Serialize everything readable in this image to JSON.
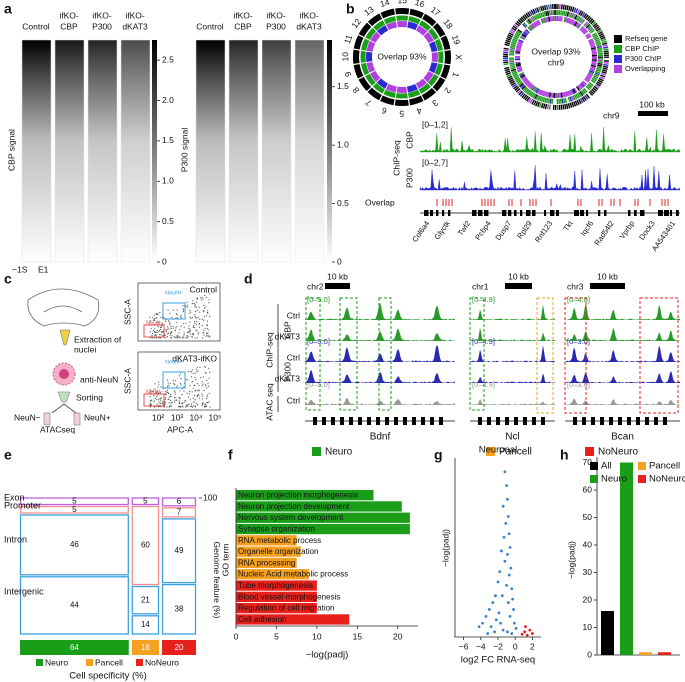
{
  "panels": {
    "a": {
      "label": "a",
      "groups": [
        {
          "ylabel": "CBP signal",
          "columns": [
            [
              "Control"
            ],
            [
              "ifKO-",
              "CBP"
            ],
            [
              "ifKO-",
              "P300"
            ],
            [
              "ifKO-",
              "dKAT3"
            ]
          ],
          "colorbar": {
            "lim": [
              0,
              2.75
            ],
            "ticks": [
              0,
              0.5,
              {
                "value": 1,
                "label": "1.0"
              },
              1.5,
              {
                "value": 2,
                "label": "2.0"
              },
              2.5
            ]
          }
        },
        {
          "ylabel": "P300 signal",
          "columns": [
            [
              "Control"
            ],
            [
              "ifKO-",
              "CBP"
            ],
            [
              "ifKO-",
              "P300"
            ],
            [
              "ifKO-",
              "dKAT3"
            ]
          ],
          "colorbar": {
            "lim": [
              0,
              1.9
            ],
            "ticks": [
              0,
              0.5,
              {
                "value": 1,
                "label": "1.0"
              },
              1.5
            ]
          }
        }
      ],
      "x_labels": [
        "−1S",
        "E1"
      ]
    },
    "b": {
      "label": "b",
      "chromosomes": [
        "1",
        "2",
        "3",
        "4",
        "5",
        "6",
        "7",
        "8",
        "9",
        "10",
        "11",
        "12",
        "13",
        "14",
        "15",
        "16",
        "17",
        "18",
        "19",
        "X"
      ],
      "left_text": [
        "Overlap 93%"
      ],
      "right_text": [
        "Overlap 93%",
        "chr9"
      ],
      "legend": [
        {
          "name": "Refseq gene",
          "color": "#000000"
        },
        {
          "name": "CBP ChIP",
          "color": "#1a9e1a"
        },
        {
          "name": "P300 ChIP",
          "color": "#2a2ad0"
        },
        {
          "name": "Overlapping",
          "color": "#b040e0"
        }
      ],
      "tracks": {
        "chrom": "chr9",
        "scale": "100 kb",
        "assay": "ChIP-seq",
        "rows": [
          {
            "name": "CBP",
            "range": "[0–1,2]"
          },
          {
            "name": "P300",
            "range": "[0–2,7]"
          }
        ],
        "overlap": "Overlap",
        "genes": [
          "Col6a4",
          "Glyctk",
          "Twf2",
          "Pcbp4",
          "Dusp7",
          "Rpl29",
          "Rnf123",
          "Tkt",
          "Iqcf6",
          "Rad54l2",
          "Vprbp",
          "Dock3",
          "AA543401"
        ]
      }
    },
    "c": {
      "label": "c",
      "extraction": [
        "Extraction of",
        "nuclei"
      ],
      "antibody": "anti-NeuN",
      "sorting": "Sorting",
      "neg": "NeuN−",
      "pos": "NeuN+",
      "assay": "ATACseq",
      "plots": [
        "Control",
        "dKAT3-ifKO"
      ],
      "ylabel": "SSC-A",
      "xlabel": "APC-A",
      "xticks": [
        "10²",
        "10³",
        "10⁴",
        "10⁵"
      ],
      "gates": [
        "NeuN+",
        "NeuN−"
      ]
    },
    "d": {
      "label": "d",
      "loci": [
        {
          "chrom": "chr2",
          "scale": "10 kb",
          "gene": "Bdnf",
          "ranges": [
            "[0–5.0]",
            "[0–5.0]",
            "[0–5.0]"
          ]
        },
        {
          "chrom": "chr1",
          "scale": "10 kb",
          "gene": "Ncl",
          "ranges": [
            "[0–4.9]",
            "[0–4.9]",
            "[0–4.9]"
          ]
        },
        {
          "chrom": "chr3",
          "scale": "10 kb",
          "gene": "Bcan",
          "ranges": [
            "[0–4.0]",
            "[0–3.0]",
            "[0–3.0]"
          ]
        }
      ],
      "rows": [
        "Ctrl",
        "dKAT3",
        "Ctrl",
        "dKAT3",
        "Ctrl"
      ],
      "groups": [
        "CBP",
        "P300"
      ],
      "assays": [
        "ChIP-seq",
        "ATAC seq"
      ],
      "legend": [
        {
          "name": "Neuro",
          "color": "#1a9e1a"
        },
        {
          "name": "Pancell",
          "color": "#f5a020"
        },
        {
          "name": "NoNeuro",
          "color": "#e8201c"
        }
      ]
    }
  },
  "chart_data": [
    {
      "type": "mosaic",
      "label": "e",
      "categories": [
        "Neuro",
        "Pancell",
        "NoNeuro"
      ],
      "values": [
        64,
        16,
        20
      ],
      "colors": [
        "#1a9e1a",
        "#f5a020",
        "#e8201c"
      ],
      "features": [
        "Exon",
        "Promoter",
        "Intron",
        "Intergenic"
      ],
      "feature_colors": [
        "#c060e0",
        "#f09090",
        "#3aa0e0",
        "#3aa0e0"
      ],
      "boxes": [
        [
          5,
          5,
          46,
          44
        ],
        [
          5,
          60,
          21,
          14
        ],
        [
          6,
          7,
          49,
          38
        ]
      ],
      "ylim": [
        0,
        100
      ],
      "yticks": [
        100
      ],
      "xlabel": "Cell specificity (%)",
      "ylabel": "Genome feature (%)"
    },
    {
      "type": "hbar",
      "label": "f",
      "categories": [
        "Neuron projection morphogenesis",
        "Neuron projection development",
        "Nervous system development",
        "Synapse organization",
        "RNA metabolic process",
        "Organelle organization",
        "RNA processing",
        "Nucleic Acid metabolic process",
        "Tube morphogenesis",
        "Blood vessel morphogenesis",
        "Regulation of cell migration",
        "Cell adhesion"
      ],
      "values": [
        17,
        20.5,
        21.5,
        21.5,
        7.5,
        8,
        7.5,
        9,
        10,
        10,
        10,
        14
      ],
      "colors": [
        "#1a9e1a",
        "#1a9e1a",
        "#1a9e1a",
        "#1a9e1a",
        "#f5a020",
        "#f5a020",
        "#f5a020",
        "#f5a020",
        "#e8201c",
        "#e8201c",
        "#e8201c",
        "#e8201c"
      ],
      "xlim": [
        0,
        22.5
      ],
      "xticks": [
        0,
        5,
        10,
        15,
        20
      ],
      "xlabel": "−log(padj)",
      "ylabel": "GO term"
    },
    {
      "type": "scatter",
      "label": "g",
      "title": "Neuronal",
      "x": [
        -1.2,
        -1.0,
        -0.9,
        -1.4,
        -0.8,
        -1.1,
        -0.7,
        -1.3,
        -0.6,
        -1.6,
        -0.9,
        -1.2,
        -0.5,
        -1.8,
        -0.7,
        -2.0,
        -1.0,
        -0.4,
        -2.3,
        -1.5,
        -0.3,
        -2.6,
        -0.8,
        -3.0,
        -0.2,
        -1.9,
        -3.4,
        -0.6,
        -2.2,
        -3.8,
        -0.1,
        -1.7,
        -4.2,
        -2.8,
        0.1,
        -1.4,
        -0.9,
        -2.4,
        -3.2,
        -0.4,
        0.8,
        1.1,
        1.4,
        1.7,
        2.0,
        1.2
      ],
      "values": [
        480,
        440,
        400,
        380,
        350,
        330,
        300,
        290,
        260,
        250,
        240,
        220,
        200,
        190,
        180,
        160,
        150,
        140,
        120,
        120,
        110,
        100,
        100,
        80,
        80,
        70,
        60,
        60,
        50,
        40,
        40,
        40,
        30,
        30,
        25,
        20,
        15,
        15,
        10,
        10,
        8,
        15,
        5,
        20,
        10,
        30
      ],
      "colors": [
        "#3b82c4",
        "#3b82c4",
        "#3b82c4",
        "#3b82c4",
        "#3b82c4",
        "#3b82c4",
        "#3b82c4",
        "#3b82c4",
        "#3b82c4",
        "#3b82c4",
        "#3b82c4",
        "#3b82c4",
        "#3b82c4",
        "#3b82c4",
        "#3b82c4",
        "#3b82c4",
        "#3b82c4",
        "#3b82c4",
        "#3b82c4",
        "#3b82c4",
        "#3b82c4",
        "#3b82c4",
        "#3b82c4",
        "#3b82c4",
        "#3b82c4",
        "#3b82c4",
        "#3b82c4",
        "#3b82c4",
        "#3b82c4",
        "#3b82c4",
        "#3b82c4",
        "#3b82c4",
        "#3b82c4",
        "#3b82c4",
        "#3b82c4",
        "#3b82c4",
        "#3b82c4",
        "#3b82c4",
        "#3b82c4",
        "#3b82c4",
        "#e02020",
        "#e02020",
        "#e02020",
        "#e02020",
        "#e02020",
        "#e02020"
      ],
      "xlim": [
        -7,
        3
      ],
      "xticks": [
        {
          "value": -6,
          "label": "−6"
        },
        {
          "value": -4,
          "label": "−4"
        },
        {
          "value": -2,
          "label": "−2"
        },
        0,
        2
      ],
      "ylim": [
        0,
        520
      ],
      "xlabel": "log2 FC RNA-seq",
      "ylabel": "−log(padj)"
    },
    {
      "type": "bar",
      "label": "h",
      "categories": [
        "All",
        "Neuro",
        "Pancell",
        "NoNeuro"
      ],
      "values": [
        16,
        70,
        1,
        1
      ],
      "colors": [
        "#000000",
        "#1a9e1a",
        "#f5a020",
        "#e8201c"
      ],
      "ylim": [
        0,
        72
      ],
      "yticks": [
        0,
        10,
        20,
        30,
        40,
        50,
        60,
        70
      ],
      "ylabel": "−log(padj)"
    }
  ]
}
